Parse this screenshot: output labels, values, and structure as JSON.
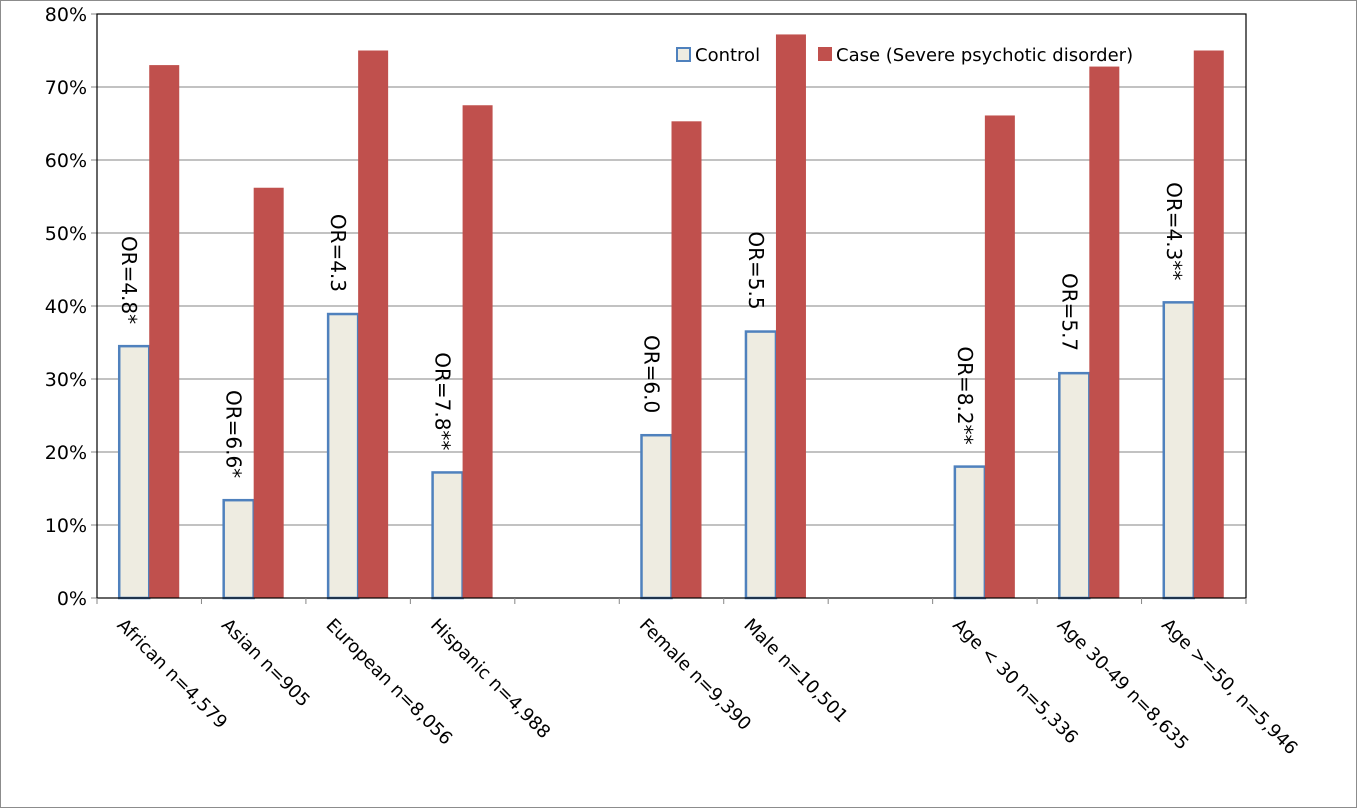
{
  "chart_data": {
    "type": "bar",
    "title": "",
    "xlabel": "",
    "ylabel": "",
    "ylim": [
      0,
      80
    ],
    "y_ticks": [
      "0%",
      "10%",
      "20%",
      "30%",
      "40%",
      "50%",
      "60%",
      "70%",
      "80%"
    ],
    "grid": "horizontal",
    "legend_position": "top-right",
    "categories": [
      "African n=4,579",
      "Asian n=905",
      "European n=8,056",
      "Hispanic n=4,988",
      "",
      "Female n=9,390",
      "Male n=10,501",
      "",
      "Age < 30 n=5,336",
      "Age 30-49 n=8,635",
      "Age >=50, n=5,946"
    ],
    "series": [
      {
        "name": "Control",
        "color": "#eeece1",
        "border_color": "#4f81bd",
        "values": [
          34.5,
          13.4,
          38.9,
          17.2,
          null,
          22.3,
          36.5,
          null,
          18.0,
          30.8,
          40.5
        ]
      },
      {
        "name": "Case (Severe psychotic disorder)",
        "color": "#c0504d",
        "values": [
          73.0,
          56.2,
          75.0,
          67.5,
          null,
          65.3,
          77.2,
          null,
          66.1,
          72.8,
          75.0
        ]
      }
    ],
    "annotations": [
      "OR=4.8*",
      "OR=6.6*",
      "OR=4.3",
      "OR=7.8**",
      null,
      "OR=6.0",
      "OR=5.5",
      null,
      "OR=8.2**",
      "OR=5.7",
      "OR=4.3**"
    ]
  }
}
